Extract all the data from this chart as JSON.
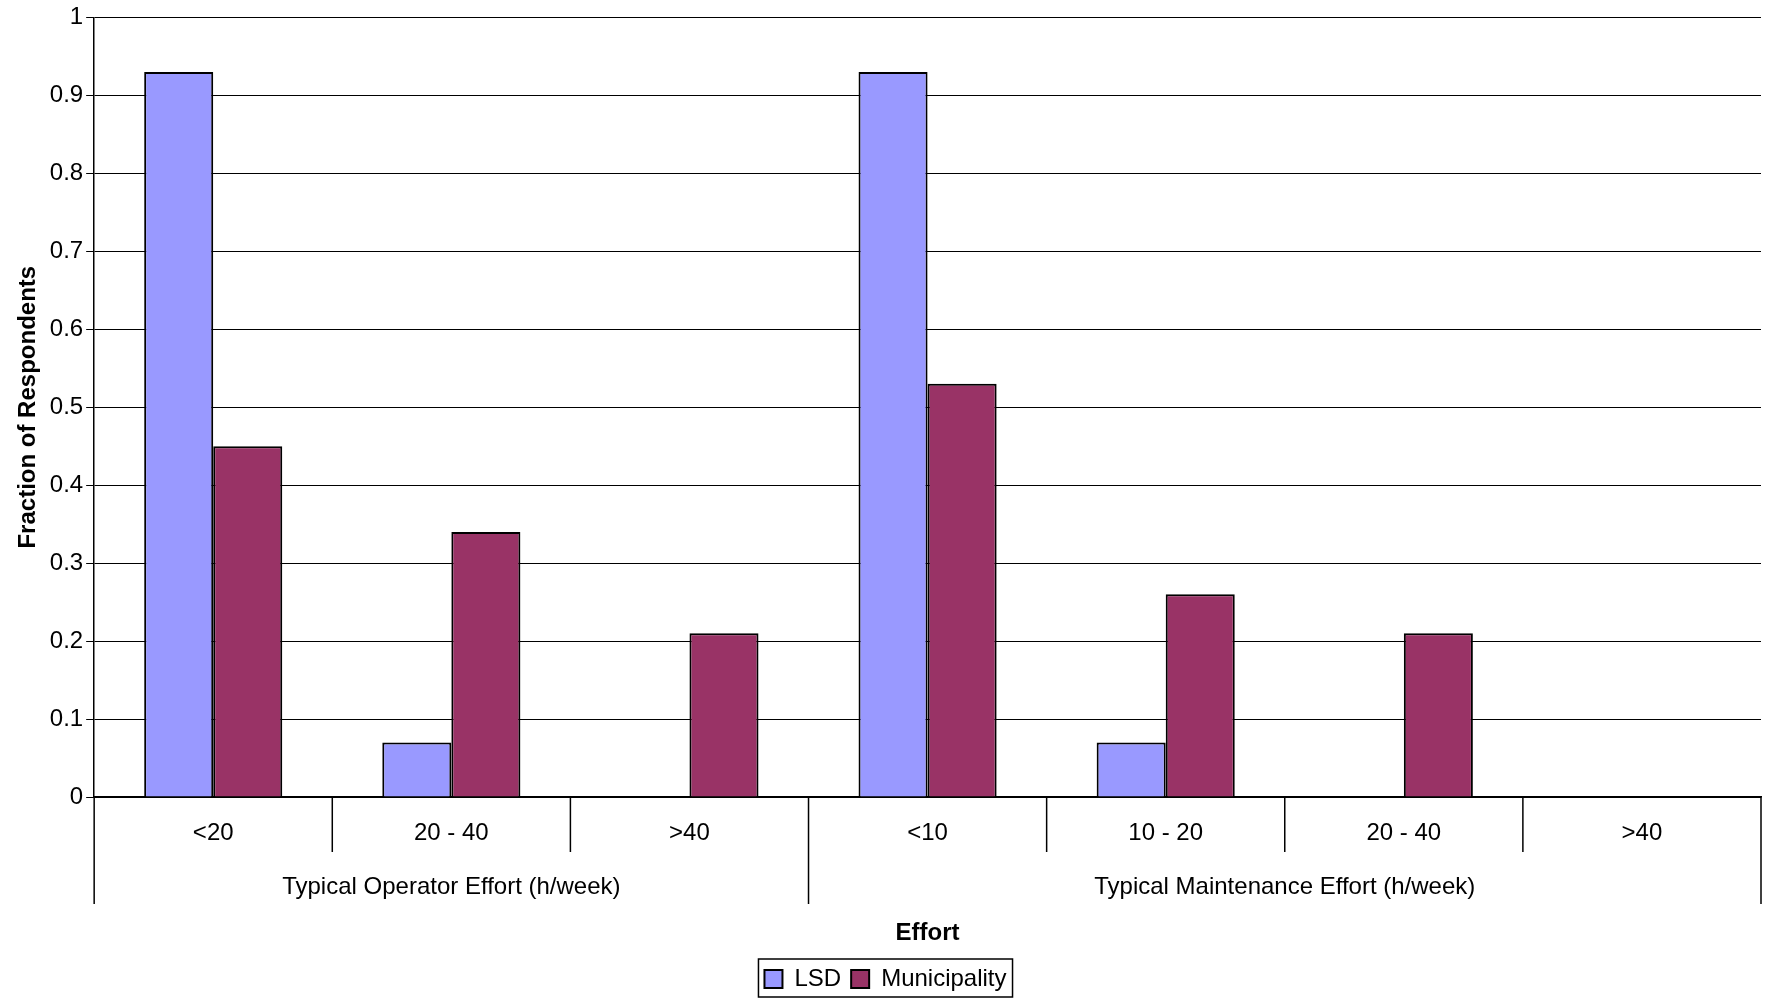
{
  "chart_data": {
    "type": "bar",
    "xlabel": "Effort",
    "ylabel": "Fraction of Respondents",
    "categories": [
      "<20",
      "20 - 40",
      ">40",
      "<10",
      "10 - 20",
      "20 - 40",
      ">40"
    ],
    "series": [
      {
        "name": "LSD",
        "color": "#9999ff",
        "values": [
          0.93,
          0.07,
          0,
          0.93,
          0.07,
          0,
          0
        ]
      },
      {
        "name": "Municipality",
        "color": "#993366",
        "values": [
          0.45,
          0.34,
          0.21,
          0.53,
          0.26,
          0.21,
          0
        ]
      }
    ],
    "annotations": [
      "Typical Operator Effort (h/week)",
      "Typical Maintenance Effort (h/week)"
    ],
    "ylim": [
      0,
      1
    ],
    "yticks": [
      0,
      0.1,
      0.2,
      0.3,
      0.4,
      0.5,
      0.6,
      0.7,
      0.8,
      0.9,
      1
    ],
    "grid": "y",
    "legend": "bottom"
  }
}
